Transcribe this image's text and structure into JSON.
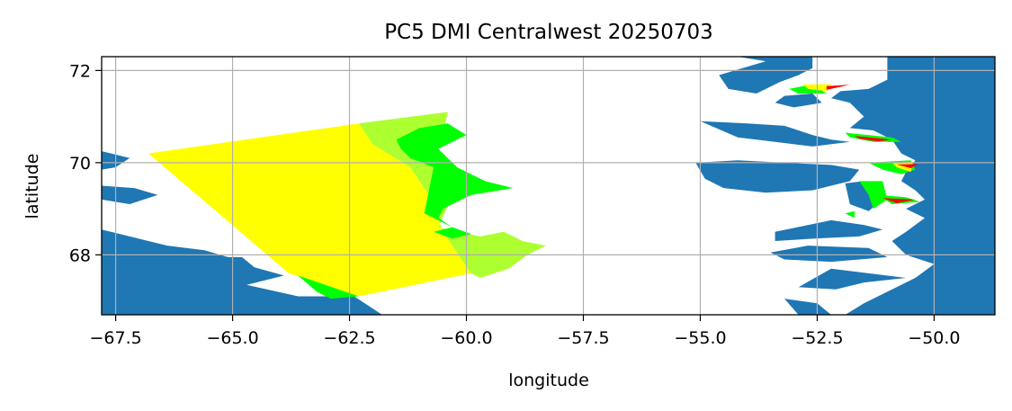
{
  "chart_data": {
    "type": "map",
    "title": "PC5 DMI Centralwest 20250703",
    "xlabel": "longitude",
    "ylabel": "latitude",
    "xlim": [
      -67.8,
      -48.7
    ],
    "ylim": [
      66.7,
      72.3
    ],
    "xticks": [
      -67.5,
      -65.0,
      -62.5,
      -60.0,
      -57.5,
      -55.0,
      -52.5,
      -50.0
    ],
    "xtick_labels": [
      "−67.5",
      "−65.0",
      "−62.5",
      "−60.0",
      "−57.5",
      "−55.0",
      "−52.5",
      "−50.0"
    ],
    "yticks": [
      68,
      70,
      72
    ],
    "ytick_labels": [
      "68",
      "70",
      "72"
    ],
    "grid": true,
    "colors": {
      "land": "#1f77b4",
      "water": "#ffffff",
      "ice_yellow": "#ffff00",
      "ice_yellowgreen": "#adff2f",
      "ice_lime": "#00ff00",
      "ice_red": "#ff0000",
      "grid": "#b0b0b0"
    },
    "ice_regions": [
      {
        "color": "ice_yellow",
        "polygon": [
          [
            -66.8,
            70.2
          ],
          [
            -62.3,
            70.85
          ],
          [
            -62.0,
            70.4
          ],
          [
            -61.2,
            69.9
          ],
          [
            -60.8,
            69.3
          ],
          [
            -60.5,
            68.5
          ],
          [
            -59.9,
            67.6
          ],
          [
            -62.3,
            67.1
          ],
          [
            -63.8,
            67.6
          ]
        ]
      },
      {
        "color": "ice_yellowgreen",
        "polygon": [
          [
            -62.3,
            70.85
          ],
          [
            -60.4,
            71.1
          ],
          [
            -60.5,
            70.6
          ],
          [
            -60.9,
            70.3
          ],
          [
            -60.4,
            70.0
          ],
          [
            -60.0,
            69.7
          ],
          [
            -60.3,
            69.3
          ],
          [
            -60.6,
            68.6
          ],
          [
            -60.2,
            68.5
          ],
          [
            -59.7,
            68.4
          ],
          [
            -59.2,
            68.5
          ],
          [
            -58.8,
            68.3
          ],
          [
            -58.3,
            68.2
          ],
          [
            -58.7,
            68.0
          ],
          [
            -59.1,
            67.7
          ],
          [
            -59.7,
            67.5
          ],
          [
            -59.9,
            67.6
          ],
          [
            -60.5,
            68.5
          ],
          [
            -60.8,
            69.3
          ],
          [
            -61.2,
            69.9
          ],
          [
            -62.0,
            70.4
          ]
        ]
      },
      {
        "color": "ice_lime",
        "polygon": [
          [
            -61.5,
            70.5
          ],
          [
            -61.0,
            70.75
          ],
          [
            -60.4,
            70.85
          ],
          [
            -60.0,
            70.6
          ],
          [
            -60.6,
            70.3
          ],
          [
            -60.2,
            69.9
          ],
          [
            -59.6,
            69.6
          ],
          [
            -59.0,
            69.45
          ],
          [
            -59.9,
            69.3
          ],
          [
            -60.5,
            69.0
          ],
          [
            -60.6,
            68.8
          ],
          [
            -60.3,
            68.6
          ],
          [
            -60.9,
            68.9
          ],
          [
            -60.8,
            69.4
          ],
          [
            -60.7,
            69.9
          ],
          [
            -61.2,
            70.1
          ],
          [
            -61.4,
            70.3
          ]
        ]
      },
      {
        "color": "ice_lime",
        "polygon": [
          [
            -63.6,
            67.55
          ],
          [
            -62.3,
            67.1
          ],
          [
            -62.9,
            67.05
          ],
          [
            -63.2,
            67.2
          ]
        ]
      },
      {
        "color": "ice_lime",
        "polygon": [
          [
            -60.7,
            68.5
          ],
          [
            -60.3,
            68.35
          ],
          [
            -59.9,
            68.45
          ],
          [
            -60.3,
            68.6
          ]
        ]
      },
      {
        "color": "ice_lime",
        "polygon": [
          [
            -53.1,
            71.6
          ],
          [
            -52.6,
            71.7
          ],
          [
            -52.3,
            71.5
          ],
          [
            -52.9,
            71.5
          ]
        ]
      },
      {
        "color": "ice_yellow",
        "polygon": [
          [
            -52.8,
            71.7
          ],
          [
            -52.2,
            71.7
          ],
          [
            -52.3,
            71.55
          ],
          [
            -52.7,
            71.6
          ]
        ]
      },
      {
        "color": "ice_red",
        "polygon": [
          [
            -52.3,
            71.66
          ],
          [
            -51.8,
            71.69
          ],
          [
            -52.3,
            71.58
          ]
        ]
      },
      {
        "color": "ice_lime",
        "polygon": [
          [
            -51.9,
            70.65
          ],
          [
            -50.9,
            70.55
          ],
          [
            -50.7,
            70.45
          ],
          [
            -51.3,
            70.45
          ],
          [
            -51.8,
            70.55
          ]
        ]
      },
      {
        "color": "ice_red",
        "polygon": [
          [
            -51.7,
            70.58
          ],
          [
            -50.9,
            70.5
          ],
          [
            -51.2,
            70.46
          ],
          [
            -51.6,
            70.52
          ]
        ]
      },
      {
        "color": "ice_lime",
        "polygon": [
          [
            -51.4,
            70.0
          ],
          [
            -50.5,
            70.05
          ],
          [
            -50.4,
            69.85
          ],
          [
            -50.7,
            69.75
          ],
          [
            -51.1,
            69.85
          ]
        ]
      },
      {
        "color": "ice_yellow",
        "polygon": [
          [
            -50.9,
            70.0
          ],
          [
            -50.45,
            70.02
          ],
          [
            -50.5,
            69.8
          ],
          [
            -50.8,
            69.9
          ]
        ]
      },
      {
        "color": "ice_red",
        "polygon": [
          [
            -50.8,
            69.96
          ],
          [
            -50.35,
            69.97
          ],
          [
            -50.5,
            69.88
          ]
        ]
      },
      {
        "color": "ice_lime",
        "polygon": [
          [
            -51.6,
            69.6
          ],
          [
            -51.1,
            69.6
          ],
          [
            -51.0,
            69.2
          ],
          [
            -51.3,
            69.0
          ],
          [
            -51.4,
            69.3
          ]
        ]
      },
      {
        "color": "ice_lime",
        "polygon": [
          [
            -51.2,
            69.3
          ],
          [
            -50.6,
            69.25
          ],
          [
            -50.3,
            69.15
          ],
          [
            -50.9,
            69.1
          ]
        ]
      },
      {
        "color": "ice_red",
        "polygon": [
          [
            -51.1,
            69.23
          ],
          [
            -50.4,
            69.2
          ],
          [
            -50.8,
            69.12
          ]
        ]
      },
      {
        "color": "ice_lime",
        "polygon": [
          [
            -51.9,
            68.9
          ],
          [
            -51.7,
            68.95
          ],
          [
            -51.7,
            68.8
          ]
        ]
      }
    ],
    "land_regions": [
      [
        [
          -67.8,
          70.25
        ],
        [
          -67.2,
          70.1
        ],
        [
          -67.5,
          69.9
        ],
        [
          -67.8,
          69.85
        ]
      ],
      [
        [
          -67.8,
          69.5
        ],
        [
          -67.1,
          69.45
        ],
        [
          -66.6,
          69.3
        ],
        [
          -67.2,
          69.1
        ],
        [
          -67.8,
          69.2
        ]
      ],
      [
        [
          -67.8,
          68.55
        ],
        [
          -66.4,
          68.2
        ],
        [
          -65.6,
          68.1
        ],
        [
          -65.1,
          67.95
        ],
        [
          -64.6,
          67.75
        ],
        [
          -63.9,
          67.55
        ],
        [
          -64.7,
          67.35
        ],
        [
          -63.6,
          67.1
        ],
        [
          -62.4,
          67.1
        ],
        [
          -62.1,
          66.9
        ],
        [
          -61.8,
          66.7
        ],
        [
          -67.8,
          66.7
        ]
      ],
      [
        [
          -65.7,
          67.95
        ],
        [
          -64.8,
          67.95
        ],
        [
          -64.5,
          67.7
        ],
        [
          -65.2,
          67.7
        ]
      ],
      [
        [
          -54.2,
          72.3
        ],
        [
          -53.6,
          72.2
        ],
        [
          -54.6,
          71.9
        ],
        [
          -54.4,
          71.6
        ],
        [
          -53.8,
          71.5
        ],
        [
          -53.3,
          71.75
        ],
        [
          -52.9,
          71.9
        ],
        [
          -52.6,
          72.05
        ],
        [
          -52.6,
          72.3
        ]
      ],
      [
        [
          -53.2,
          71.45
        ],
        [
          -52.6,
          71.5
        ],
        [
          -52.4,
          71.3
        ],
        [
          -53.0,
          71.2
        ],
        [
          -53.4,
          71.3
        ]
      ],
      [
        [
          -52.6,
          72.3
        ],
        [
          -51.0,
          72.3
        ],
        [
          -51.0,
          71.8
        ],
        [
          -51.4,
          71.6
        ],
        [
          -52.0,
          71.55
        ],
        [
          -52.2,
          71.4
        ],
        [
          -51.8,
          71.3
        ],
        [
          -51.5,
          71.0
        ],
        [
          -51.8,
          70.75
        ],
        [
          -51.3,
          70.7
        ],
        [
          -50.9,
          70.5
        ],
        [
          -50.7,
          70.2
        ],
        [
          -50.4,
          70.05
        ],
        [
          -50.6,
          69.8
        ],
        [
          -50.7,
          69.6
        ],
        [
          -50.4,
          69.4
        ],
        [
          -50.2,
          69.2
        ],
        [
          -50.6,
          69.0
        ],
        [
          -50.2,
          68.8
        ],
        [
          -50.6,
          68.5
        ],
        [
          -50.9,
          68.3
        ],
        [
          -50.6,
          68.0
        ],
        [
          -50.0,
          67.8
        ],
        [
          -50.4,
          67.5
        ],
        [
          -51.0,
          67.2
        ],
        [
          -51.5,
          66.95
        ],
        [
          -51.9,
          66.7
        ],
        [
          -48.7,
          66.7
        ],
        [
          -48.7,
          72.3
        ]
      ],
      [
        [
          -55.0,
          70.9
        ],
        [
          -54.0,
          70.85
        ],
        [
          -53.2,
          70.8
        ],
        [
          -52.6,
          70.6
        ],
        [
          -52.2,
          70.5
        ],
        [
          -51.8,
          70.45
        ],
        [
          -52.6,
          70.35
        ],
        [
          -53.4,
          70.45
        ],
        [
          -54.2,
          70.55
        ]
      ],
      [
        [
          -55.1,
          70.0
        ],
        [
          -54.2,
          70.05
        ],
        [
          -53.2,
          70.0
        ],
        [
          -52.2,
          69.95
        ],
        [
          -51.6,
          69.85
        ],
        [
          -51.8,
          69.6
        ],
        [
          -52.6,
          69.4
        ],
        [
          -53.6,
          69.35
        ],
        [
          -54.5,
          69.45
        ],
        [
          -54.9,
          69.65
        ]
      ],
      [
        [
          -51.9,
          69.55
        ],
        [
          -51.5,
          69.6
        ],
        [
          -51.1,
          69.2
        ],
        [
          -51.4,
          68.95
        ],
        [
          -51.8,
          69.1
        ]
      ],
      [
        [
          -53.4,
          68.5
        ],
        [
          -52.2,
          68.75
        ],
        [
          -51.5,
          68.65
        ],
        [
          -51.1,
          68.55
        ],
        [
          -51.6,
          68.4
        ],
        [
          -52.6,
          68.35
        ],
        [
          -53.4,
          68.3
        ]
      ],
      [
        [
          -52.7,
          68.2
        ],
        [
          -51.4,
          68.15
        ],
        [
          -51.0,
          67.95
        ],
        [
          -52.2,
          67.85
        ],
        [
          -53.2,
          67.9
        ],
        [
          -53.5,
          68.05
        ]
      ],
      [
        [
          -52.2,
          67.7
        ],
        [
          -51.4,
          67.6
        ],
        [
          -50.6,
          67.5
        ],
        [
          -51.5,
          67.4
        ],
        [
          -52.1,
          67.25
        ],
        [
          -52.9,
          67.3
        ]
      ],
      [
        [
          -53.2,
          67.05
        ],
        [
          -52.5,
          66.95
        ],
        [
          -52.2,
          66.7
        ],
        [
          -52.9,
          66.7
        ]
      ]
    ]
  }
}
